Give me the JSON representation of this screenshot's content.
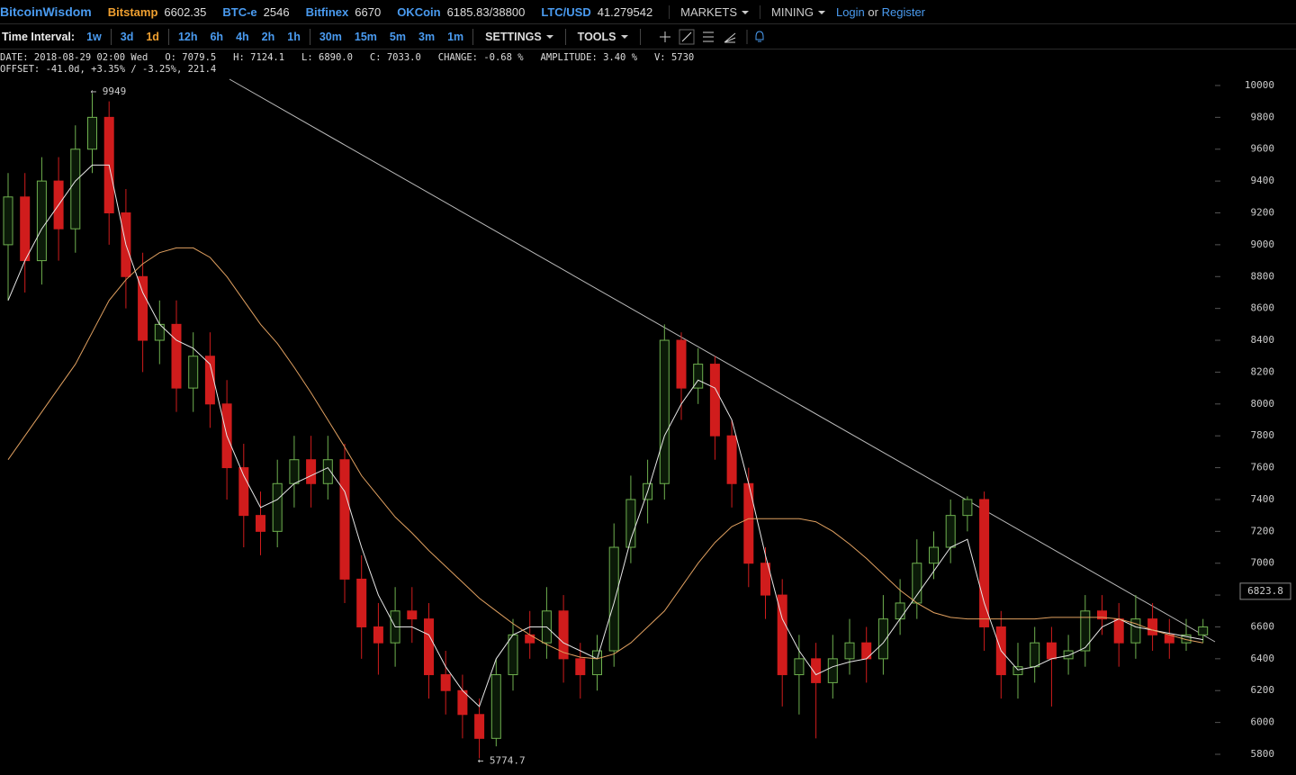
{
  "header": {
    "brand": "BitcoinWisdom",
    "tickers": [
      {
        "name": "Bitstamp",
        "price": "6602.35"
      },
      {
        "name": "BTC-e",
        "price": "2546"
      },
      {
        "name": "Bitfinex",
        "price": "6670"
      },
      {
        "name": "OKCoin",
        "price": "6185.83/38800"
      },
      {
        "name": "LTC/USD",
        "price": "41.279542"
      }
    ],
    "menus": [
      "MARKETS",
      "MINING"
    ],
    "login": "Login",
    "or": "or",
    "register": "Register"
  },
  "toolbar": {
    "label": "Time Interval:",
    "intervals": [
      "1w",
      "3d",
      "1d",
      "12h",
      "6h",
      "4h",
      "2h",
      "1h",
      "30m",
      "15m",
      "5m",
      "3m",
      "1m"
    ],
    "settings": "SETTINGS",
    "tools": "TOOLS"
  },
  "info": {
    "line1": "DATE: 2018-08-29 02:00 Wed   O: 7079.5   H: 7124.1   L: 6890.0   C: 7033.0   CHANGE: -0.68 %   AMPLITUDE: 3.40 %   V: 5730",
    "line2": "OFFSET: -41.0d, +3.35% / -3.25%, 221.4"
  },
  "chart_data": {
    "type": "candlestick",
    "ylim": [
      5700,
      10200
    ],
    "yticks": [
      5800,
      6000,
      6200,
      6400,
      6600,
      6800,
      7000,
      7200,
      7400,
      7600,
      7800,
      8000,
      8200,
      8400,
      8600,
      8800,
      9000,
      9200,
      9400,
      9600,
      9800,
      10000
    ],
    "up_color": "#6fb04f",
    "down_color": "#d01c1c",
    "open": [
      9000,
      9300,
      8900,
      9400,
      9100,
      9600,
      9800,
      9200,
      8800,
      8400,
      8500,
      8100,
      8300,
      8000,
      7600,
      7300,
      7200,
      7500,
      7650,
      7500,
      7650,
      6900,
      6600,
      6500,
      6700,
      6650,
      6300,
      6200,
      6050,
      5900,
      6300,
      6550,
      6500,
      6700,
      6400,
      6300,
      6450,
      7100,
      7400,
      7500,
      8400,
      8100,
      8250,
      7800,
      7500,
      7000,
      6800,
      6300,
      6400,
      6250,
      6400,
      6500,
      6400,
      6650,
      6750,
      7000,
      7100,
      7300,
      7400,
      6600,
      6300,
      6350,
      6500,
      6400,
      6450,
      6700,
      6650,
      6500,
      6650,
      6550,
      6500,
      6550
    ],
    "high": [
      9450,
      9450,
      9550,
      9550,
      9750,
      9949,
      9900,
      9350,
      8950,
      8650,
      8650,
      8450,
      8450,
      8150,
      7750,
      7450,
      7650,
      7800,
      7800,
      7800,
      7750,
      7050,
      6750,
      6850,
      6850,
      6750,
      6450,
      6300,
      6150,
      6400,
      6650,
      6700,
      6850,
      6800,
      6500,
      6550,
      7250,
      7550,
      7650,
      8500,
      8450,
      8350,
      8300,
      7900,
      7600,
      7100,
      6900,
      6550,
      6500,
      6550,
      6650,
      6600,
      6800,
      6900,
      7150,
      7200,
      7400,
      7420,
      7450,
      6700,
      6500,
      6600,
      6600,
      6550,
      6800,
      6800,
      6750,
      6800,
      6750,
      6650,
      6650,
      6650
    ],
    "low": [
      8650,
      8700,
      8750,
      8900,
      8950,
      9450,
      9000,
      8600,
      8200,
      8250,
      7950,
      7950,
      7850,
      7400,
      7100,
      7050,
      7100,
      7350,
      7350,
      7400,
      6750,
      6400,
      6300,
      6350,
      6500,
      6150,
      6050,
      5900,
      5774.7,
      5850,
      6200,
      6400,
      6400,
      6250,
      6150,
      6200,
      6350,
      7000,
      7250,
      7400,
      7900,
      8000,
      7650,
      7350,
      6850,
      6650,
      6100,
      6050,
      5900,
      6150,
      6300,
      6250,
      6300,
      6550,
      6650,
      6900,
      7000,
      7200,
      6450,
      6150,
      6150,
      6250,
      6100,
      6300,
      6350,
      6550,
      6350,
      6400,
      6450,
      6400,
      6450,
      6500
    ],
    "close": [
      9300,
      8900,
      9400,
      9100,
      9600,
      9800,
      9200,
      8800,
      8400,
      8500,
      8100,
      8300,
      8000,
      7600,
      7300,
      7200,
      7500,
      7650,
      7500,
      7650,
      6900,
      6600,
      6500,
      6700,
      6650,
      6300,
      6200,
      6050,
      5900,
      6300,
      6550,
      6500,
      6700,
      6400,
      6300,
      6450,
      7100,
      7400,
      7500,
      8400,
      8100,
      8250,
      7800,
      7500,
      7000,
      6800,
      6300,
      6400,
      6250,
      6400,
      6500,
      6400,
      6650,
      6750,
      7000,
      7100,
      7300,
      7400,
      6600,
      6300,
      6350,
      6500,
      6400,
      6450,
      6700,
      6650,
      6500,
      6650,
      6550,
      6500,
      6550,
      6600
    ],
    "lines": [
      {
        "color": "#e6e6e6",
        "values": [
          8650,
          8900,
          9100,
          9250,
          9400,
          9500,
          9500,
          9000,
          8700,
          8500,
          8400,
          8350,
          8250,
          7800,
          7550,
          7350,
          7400,
          7500,
          7550,
          7600,
          7450,
          7100,
          6800,
          6600,
          6600,
          6550,
          6350,
          6200,
          6100,
          6400,
          6550,
          6600,
          6600,
          6500,
          6450,
          6400,
          6750,
          7150,
          7450,
          7800,
          8000,
          8150,
          8100,
          7900,
          7500,
          7050,
          6650,
          6450,
          6300,
          6350,
          6380,
          6400,
          6500,
          6650,
          6800,
          6950,
          7100,
          7150,
          6750,
          6450,
          6330,
          6350,
          6400,
          6420,
          6470,
          6600,
          6650,
          6600,
          6580,
          6560,
          6540,
          6520
        ]
      },
      {
        "color": "#e0a060",
        "values": [
          7650,
          7800,
          7950,
          8100,
          8250,
          8450,
          8650,
          8780,
          8880,
          8950,
          8980,
          8980,
          8920,
          8800,
          8650,
          8500,
          8380,
          8230,
          8070,
          7900,
          7730,
          7550,
          7420,
          7290,
          7190,
          7080,
          6980,
          6880,
          6780,
          6700,
          6620,
          6550,
          6490,
          6440,
          6410,
          6400,
          6430,
          6500,
          6600,
          6700,
          6850,
          7000,
          7130,
          7230,
          7280,
          7280,
          7280,
          7280,
          7260,
          7200,
          7120,
          7030,
          6930,
          6830,
          6750,
          6690,
          6660,
          6650,
          6650,
          6650,
          6650,
          6650,
          6660,
          6660,
          6660,
          6660,
          6650,
          6620,
          6580,
          6550,
          6520,
          6500
        ]
      }
    ],
    "annotations": [
      {
        "text": "← 9949",
        "value": 9949
      },
      {
        "text": "← 5774.7",
        "value": 5774.7
      }
    ],
    "current_price": 6823.8
  }
}
